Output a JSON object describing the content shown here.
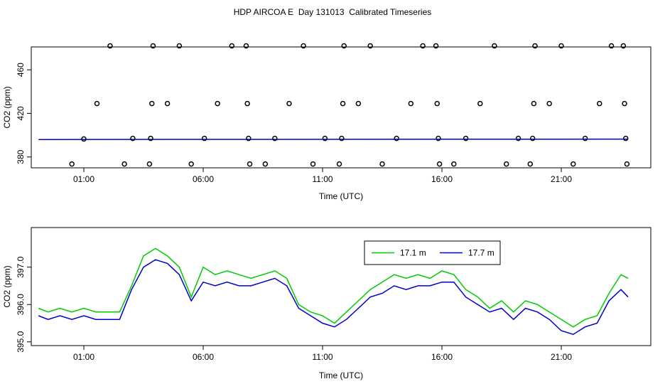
{
  "title": "HDP AIRCOA E  Day 131013  Calibrated Timeseries",
  "colors": {
    "series_a": "#00cc00",
    "series_b": "#0000cc",
    "axis": "#000000"
  },
  "chart_data": [
    {
      "type": "scatter",
      "xlabel": "Time (UTC)",
      "ylabel": "CO2 (ppm)",
      "xlim": [
        -0.9,
        24.1
      ],
      "ylim": [
        370,
        481
      ],
      "x_ticks": [
        1,
        6,
        11,
        16,
        21
      ],
      "x_tick_labels": [
        "01:00",
        "06:00",
        "11:00",
        "16:00",
        "21:00"
      ],
      "y_ticks": [
        380,
        420,
        460
      ],
      "y_tick_labels": [
        "380",
        "420",
        "460"
      ],
      "grid": false,
      "points": [
        [
          0.5,
          373.5
        ],
        [
          1.0,
          396.5
        ],
        [
          1.55,
          429
        ],
        [
          2.1,
          482
        ],
        [
          2.7,
          373.5
        ],
        [
          3.05,
          397
        ],
        [
          3.75,
          373.5
        ],
        [
          3.8,
          397
        ],
        [
          3.85,
          429
        ],
        [
          3.9,
          482
        ],
        [
          4.5,
          429
        ],
        [
          5.0,
          482
        ],
        [
          5.5,
          373.5
        ],
        [
          6.05,
          397
        ],
        [
          6.6,
          429
        ],
        [
          7.2,
          482
        ],
        [
          7.8,
          482
        ],
        [
          7.85,
          429
        ],
        [
          7.9,
          397
        ],
        [
          7.95,
          373.5
        ],
        [
          8.6,
          373.5
        ],
        [
          9.0,
          397
        ],
        [
          9.6,
          429
        ],
        [
          10.2,
          482
        ],
        [
          10.6,
          373.5
        ],
        [
          11.1,
          397
        ],
        [
          11.7,
          373.5
        ],
        [
          11.8,
          397
        ],
        [
          11.85,
          429
        ],
        [
          11.9,
          482
        ],
        [
          12.5,
          429
        ],
        [
          13.0,
          482
        ],
        [
          13.5,
          373.5
        ],
        [
          14.1,
          397
        ],
        [
          14.7,
          429
        ],
        [
          15.2,
          482
        ],
        [
          15.75,
          482
        ],
        [
          15.8,
          429
        ],
        [
          15.85,
          397
        ],
        [
          15.9,
          373.5
        ],
        [
          16.5,
          373.5
        ],
        [
          17.0,
          397
        ],
        [
          17.6,
          429
        ],
        [
          18.2,
          482
        ],
        [
          18.7,
          373.5
        ],
        [
          19.2,
          397
        ],
        [
          19.7,
          373.5
        ],
        [
          19.8,
          397
        ],
        [
          19.85,
          429
        ],
        [
          19.9,
          482
        ],
        [
          20.5,
          429
        ],
        [
          21.0,
          482
        ],
        [
          21.5,
          373.5
        ],
        [
          22.0,
          397
        ],
        [
          22.6,
          429
        ],
        [
          23.1,
          482
        ],
        [
          23.6,
          482
        ],
        [
          23.65,
          429
        ],
        [
          23.7,
          397
        ],
        [
          23.75,
          373.5
        ]
      ],
      "series": [
        {
          "x": [
            -0.9,
            23.8
          ],
          "values": [
            396.0,
            396.4
          ]
        }
      ]
    },
    {
      "type": "line",
      "xlabel": "Time (UTC)",
      "ylabel": "CO2 (ppm)",
      "xlim": [
        -0.9,
        24.1
      ],
      "ylim": [
        394.9,
        398.06
      ],
      "x_ticks": [
        1,
        6,
        11,
        16,
        21
      ],
      "x_tick_labels": [
        "01:00",
        "06:00",
        "11:00",
        "16:00",
        "21:00"
      ],
      "y_ticks": [
        395.0,
        396.0,
        397.0
      ],
      "y_tick_labels": [
        "395.0",
        "396.0",
        "397.0"
      ],
      "grid": false,
      "legend_position": "top-right",
      "x": [
        -0.9,
        -0.5,
        0,
        0.5,
        1,
        1.5,
        2,
        2.5,
        3,
        3.5,
        4,
        4.5,
        5,
        5.5,
        6,
        6.5,
        7,
        7.5,
        8,
        8.5,
        9,
        9.5,
        10,
        10.5,
        11,
        11.5,
        12,
        12.5,
        13,
        13.5,
        14,
        14.5,
        15,
        15.5,
        16,
        16.5,
        17,
        17.5,
        18,
        18.5,
        19,
        19.5,
        20,
        20.5,
        21,
        21.5,
        22,
        22.5,
        23,
        23.5,
        23.8
      ],
      "series": [
        {
          "name": "17.1 m",
          "color": "#00cc00",
          "values": [
            395.9,
            395.8,
            395.9,
            395.8,
            395.9,
            395.8,
            395.8,
            395.8,
            396.5,
            397.3,
            397.5,
            397.3,
            397.0,
            396.2,
            397.0,
            396.8,
            396.9,
            396.8,
            396.7,
            396.8,
            396.9,
            396.7,
            396.0,
            395.8,
            395.7,
            395.5,
            395.8,
            396.1,
            396.4,
            396.6,
            396.8,
            396.7,
            396.8,
            396.7,
            396.9,
            396.8,
            396.4,
            396.2,
            395.9,
            396.1,
            395.8,
            396.1,
            396.0,
            395.8,
            395.6,
            395.4,
            395.6,
            395.7,
            396.3,
            396.8,
            396.7
          ]
        },
        {
          "name": "17.7 m",
          "color": "#0000cc",
          "values": [
            395.7,
            395.6,
            395.7,
            395.6,
            395.7,
            395.6,
            395.6,
            395.6,
            396.4,
            397.0,
            397.2,
            397.1,
            396.8,
            396.1,
            396.6,
            396.5,
            396.6,
            396.5,
            396.5,
            396.6,
            396.7,
            396.5,
            395.9,
            395.7,
            395.5,
            395.4,
            395.6,
            395.9,
            396.2,
            396.3,
            396.5,
            396.4,
            396.5,
            396.5,
            396.6,
            396.6,
            396.2,
            396.0,
            395.8,
            395.9,
            395.6,
            395.9,
            395.8,
            395.6,
            395.3,
            395.2,
            395.4,
            395.5,
            396.1,
            396.4,
            396.2
          ]
        }
      ]
    }
  ]
}
